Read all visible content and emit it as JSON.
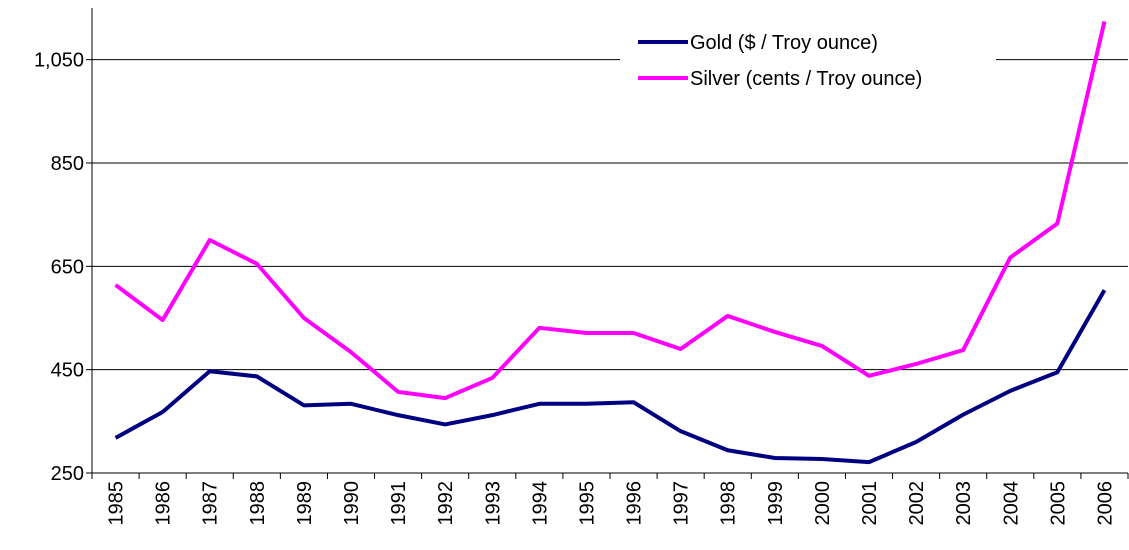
{
  "chart_data": {
    "type": "line",
    "categories": [
      "1985",
      "1986",
      "1987",
      "1988",
      "1989",
      "1990",
      "1991",
      "1992",
      "1993",
      "1994",
      "1995",
      "1996",
      "1997",
      "1998",
      "1999",
      "2000",
      "2001",
      "2002",
      "2003",
      "2004",
      "2005",
      "2006"
    ],
    "series": [
      {
        "name": "Gold ($ / Troy ounce)",
        "color": "#000080",
        "values": [
          318,
          368,
          447,
          437,
          381,
          384,
          362,
          344,
          362,
          384,
          384,
          387,
          331,
          294,
          279,
          277,
          271,
          310,
          363,
          409,
          445,
          604
        ]
      },
      {
        "name": "Silver (cents / Troy ounce)",
        "color": "#ff00ff",
        "values": [
          614,
          546,
          701,
          655,
          550,
          484,
          407,
          395,
          434,
          531,
          521,
          521,
          490,
          554,
          523,
          496,
          438,
          461,
          488,
          667,
          733,
          1124
        ]
      }
    ],
    "ylim": [
      250,
      1150
    ],
    "yticks": [
      250,
      450,
      650,
      850,
      {
        "value": 1050,
        "label": "1,050"
      }
    ],
    "grid": true,
    "legend": "top-right"
  }
}
